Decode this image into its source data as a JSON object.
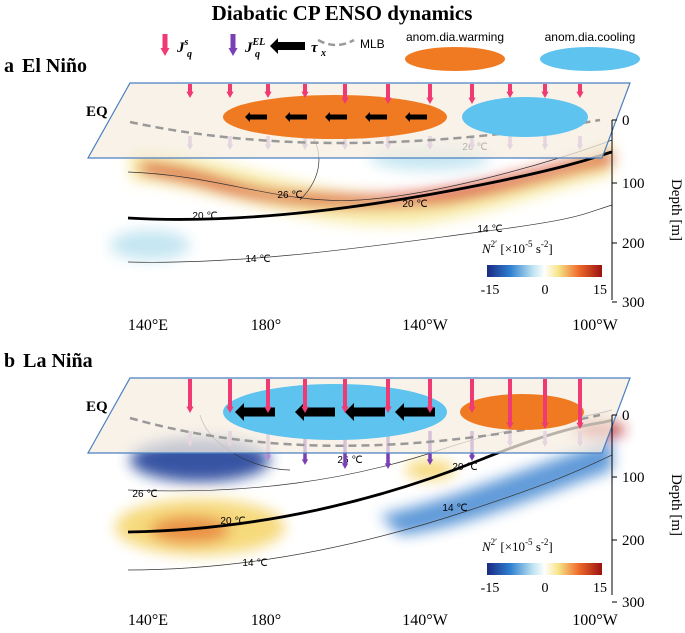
{
  "title": "Diabatic CP ENSO dynamics",
  "legend": {
    "jqs": {
      "base": "J",
      "sup": "s",
      "sub": "q"
    },
    "jqel": {
      "base": "J",
      "sup": "EL",
      "sub": "q"
    },
    "taux": {
      "base": "τ",
      "sub": "x"
    },
    "mlb": "MLB",
    "warming": "anom.dia.warming",
    "cooling": "anom.dia.cooling"
  },
  "panels": [
    {
      "letter": "a",
      "name": "El Niño",
      "eq": "EQ",
      "depth_ticks": [
        "0",
        "100",
        "200",
        "300"
      ],
      "depth_label": "Depth [m]",
      "x_ticks": [
        "140°E",
        "180°",
        "140°W",
        "100°W"
      ],
      "contours": [
        "26 ℃",
        "26 ℃",
        "20 ℃",
        "20 ℃",
        "14 ℃",
        "14 ℃"
      ],
      "colorbar": {
        "n": "N",
        "nsup": "2′",
        "open": " [×10",
        "esup": "-5",
        "unit": " s",
        "usup": "-2",
        "close": "]",
        "ticks": [
          "-15",
          "0",
          "15"
        ]
      }
    },
    {
      "letter": "b",
      "name": "La Niña",
      "eq": "EQ",
      "depth_ticks": [
        "0",
        "100",
        "200",
        "300"
      ],
      "depth_label": "Depth [m]",
      "x_ticks": [
        "140°E",
        "180°",
        "140°W",
        "100°W"
      ],
      "contours": [
        "26 ℃",
        "26 ℃",
        "20 ℃",
        "20 ℃",
        "14 ℃",
        "14 ℃"
      ],
      "colorbar": {
        "n": "N",
        "nsup": "2′",
        "open": " [×10",
        "esup": "-5",
        "unit": " s",
        "usup": "-2",
        "close": "]",
        "ticks": [
          "-15",
          "0",
          "15"
        ]
      }
    }
  ]
}
